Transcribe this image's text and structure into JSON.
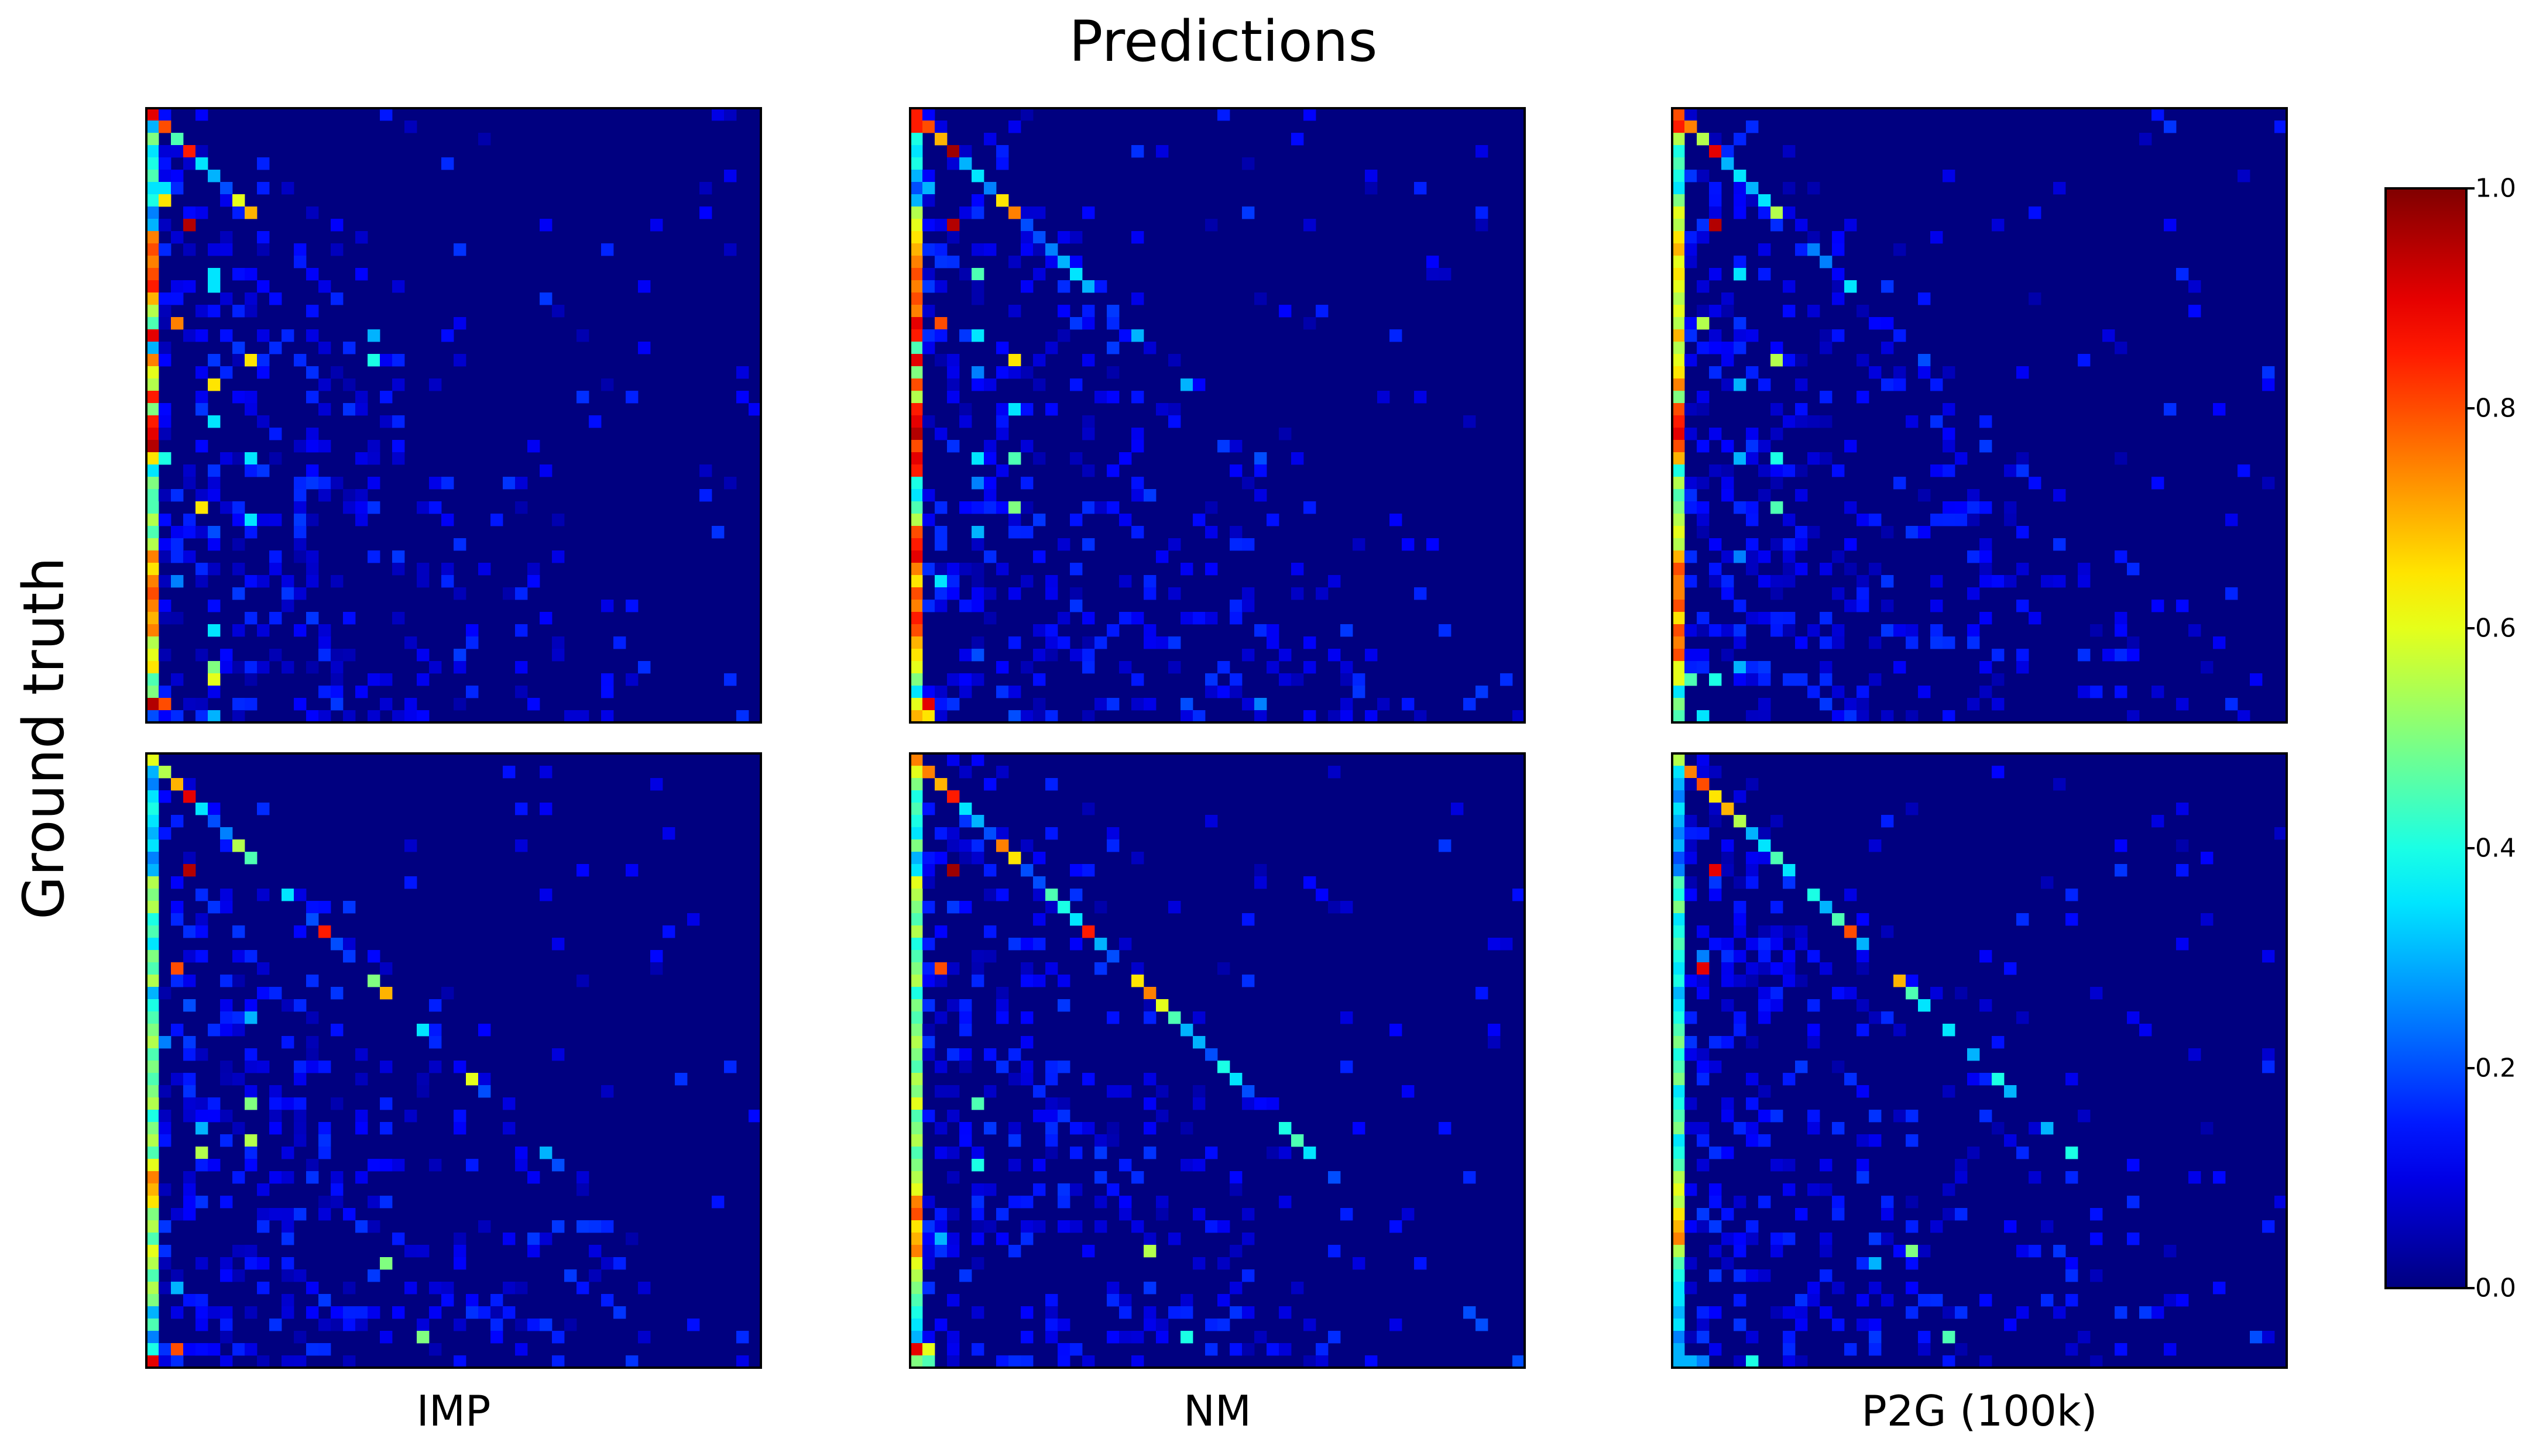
{
  "title": "Predictions",
  "ylabel": "Ground truth",
  "colormap": "jet",
  "colorbar": {
    "min": 0.0,
    "max": 1.0,
    "ticks": [
      "0.0",
      "0.2",
      "0.4",
      "0.6",
      "0.8",
      "1.0"
    ]
  },
  "chart_data": [
    {
      "type": "heatmap",
      "row": 1,
      "col": 1,
      "xlabel": "",
      "size": [
        50,
        50
      ],
      "diagonal": [
        [
          0,
          0,
          0.9
        ],
        [
          1,
          1,
          0.8
        ],
        [
          2,
          2,
          0.45
        ],
        [
          3,
          3,
          0.85
        ],
        [
          4,
          4,
          0.35
        ],
        [
          5,
          5,
          0.3
        ],
        [
          6,
          6,
          0.2
        ],
        [
          7,
          7,
          0.6
        ],
        [
          8,
          8,
          0.7
        ],
        [
          12,
          12,
          0.15
        ],
        [
          13,
          13,
          0.12
        ],
        [
          14,
          14,
          0.1
        ],
        [
          18,
          18,
          0.3
        ]
      ],
      "first_column": [
        0.9,
        0.3,
        0.5,
        0.35,
        0.4,
        0.45,
        0.35,
        0.4,
        0.25,
        0.3,
        0.75,
        0.8,
        0.75,
        0.8,
        0.85,
        0.7,
        0.55,
        0.45,
        0.9,
        0.3,
        0.75,
        0.6,
        0.55,
        0.85,
        0.5,
        0.85,
        0.9,
        0.95,
        0.65,
        0.35,
        0.5,
        0.45,
        0.45,
        0.55,
        0.45,
        0.55,
        0.75,
        0.65,
        0.75,
        0.8,
        0.75,
        0.7,
        0.75,
        0.55,
        0.6,
        0.65,
        0.45,
        0.5,
        0.95,
        0.2
      ],
      "hotspots": [
        [
          6,
          1,
          0.35
        ],
        [
          7,
          1,
          0.65
        ],
        [
          9,
          3,
          0.95
        ],
        [
          13,
          5,
          0.35
        ],
        [
          14,
          5,
          0.35
        ],
        [
          17,
          2,
          0.75
        ],
        [
          20,
          18,
          0.4
        ],
        [
          20,
          8,
          0.65
        ],
        [
          22,
          5,
          0.65
        ],
        [
          25,
          5,
          0.35
        ],
        [
          28,
          8,
          0.35
        ],
        [
          28,
          1,
          0.4
        ],
        [
          32,
          4,
          0.65
        ],
        [
          33,
          8,
          0.35
        ],
        [
          34,
          5,
          0.2
        ],
        [
          38,
          2,
          0.25
        ],
        [
          42,
          5,
          0.35
        ],
        [
          45,
          5,
          0.5
        ],
        [
          46,
          5,
          0.6
        ],
        [
          48,
          1,
          0.8
        ],
        [
          49,
          5,
          0.3
        ]
      ]
    },
    {
      "type": "heatmap",
      "row": 1,
      "col": 2,
      "xlabel": "",
      "size": [
        50,
        50
      ],
      "diagonal": [
        [
          0,
          0,
          0.85
        ],
        [
          1,
          1,
          0.8
        ],
        [
          2,
          2,
          0.7
        ],
        [
          3,
          3,
          0.97
        ],
        [
          4,
          4,
          0.3
        ],
        [
          5,
          5,
          0.35
        ],
        [
          6,
          6,
          0.25
        ],
        [
          7,
          7,
          0.65
        ],
        [
          8,
          8,
          0.75
        ],
        [
          9,
          9,
          0.2
        ],
        [
          10,
          10,
          0.2
        ],
        [
          11,
          11,
          0.25
        ],
        [
          12,
          12,
          0.3
        ],
        [
          13,
          13,
          0.35
        ],
        [
          14,
          14,
          0.3
        ],
        [
          18,
          18,
          0.3
        ],
        [
          22,
          22,
          0.3
        ],
        [
          28,
          28,
          0.2
        ],
        [
          32,
          32,
          0.15
        ]
      ],
      "first_column": [
        0.75,
        0.85,
        0.4,
        0.35,
        0.4,
        0.3,
        0.2,
        0.3,
        0.55,
        0.6,
        0.65,
        0.7,
        0.75,
        0.8,
        0.75,
        0.8,
        0.75,
        0.9,
        0.85,
        0.45,
        0.9,
        0.5,
        0.8,
        0.55,
        0.85,
        0.9,
        0.95,
        0.8,
        0.9,
        0.85,
        0.4,
        0.35,
        0.45,
        0.55,
        0.8,
        0.85,
        0.9,
        0.75,
        0.65,
        0.8,
        0.75,
        0.85,
        0.8,
        0.7,
        0.65,
        0.6,
        0.5,
        0.35,
        0.6,
        0.7
      ],
      "hotspots": [
        [
          6,
          1,
          0.3
        ],
        [
          9,
          3,
          0.95
        ],
        [
          13,
          5,
          0.45
        ],
        [
          17,
          2,
          0.8
        ],
        [
          18,
          5,
          0.35
        ],
        [
          20,
          8,
          0.65
        ],
        [
          21,
          5,
          0.25
        ],
        [
          24,
          8,
          0.35
        ],
        [
          28,
          8,
          0.45
        ],
        [
          28,
          5,
          0.35
        ],
        [
          30,
          5,
          0.25
        ],
        [
          32,
          8,
          0.5
        ],
        [
          34,
          5,
          0.3
        ],
        [
          38,
          2,
          0.35
        ],
        [
          44,
          5,
          0.2
        ],
        [
          48,
          1,
          0.9
        ],
        [
          49,
          1,
          0.65
        ],
        [
          49,
          8,
          0.2
        ],
        [
          48,
          28,
          0.25
        ],
        [
          48,
          22,
          0.2
        ]
      ]
    },
    {
      "type": "heatmap",
      "row": 1,
      "col": 3,
      "xlabel": "",
      "size": [
        50,
        50
      ],
      "diagonal": [
        [
          0,
          0,
          0.8
        ],
        [
          1,
          1,
          0.75
        ],
        [
          2,
          2,
          0.55
        ],
        [
          3,
          3,
          0.9
        ],
        [
          4,
          4,
          0.3
        ],
        [
          5,
          5,
          0.35
        ],
        [
          6,
          6,
          0.3
        ],
        [
          7,
          7,
          0.35
        ],
        [
          8,
          8,
          0.55
        ],
        [
          11,
          11,
          0.25
        ],
        [
          12,
          12,
          0.25
        ],
        [
          14,
          14,
          0.35
        ],
        [
          18,
          18,
          0.15
        ],
        [
          20,
          20,
          0.2
        ]
      ],
      "first_column": [
        0.6,
        0.85,
        0.55,
        0.4,
        0.45,
        0.4,
        0.35,
        0.5,
        0.6,
        0.55,
        0.65,
        0.7,
        0.6,
        0.65,
        0.6,
        0.55,
        0.6,
        0.55,
        0.7,
        0.55,
        0.6,
        0.65,
        0.75,
        0.5,
        0.8,
        0.85,
        0.9,
        0.8,
        0.7,
        0.4,
        0.55,
        0.45,
        0.5,
        0.55,
        0.6,
        0.55,
        0.7,
        0.8,
        0.75,
        0.75,
        0.8,
        0.65,
        0.8,
        0.75,
        0.8,
        0.6,
        0.6,
        0.35,
        0.5,
        0.45
      ],
      "hotspots": [
        [
          9,
          3,
          0.95
        ],
        [
          13,
          5,
          0.35
        ],
        [
          17,
          2,
          0.55
        ],
        [
          20,
          8,
          0.55
        ],
        [
          22,
          5,
          0.3
        ],
        [
          28,
          8,
          0.4
        ],
        [
          28,
          5,
          0.3
        ],
        [
          32,
          8,
          0.45
        ],
        [
          36,
          5,
          0.25
        ],
        [
          45,
          5,
          0.3
        ],
        [
          46,
          1,
          0.45
        ],
        [
          46,
          3,
          0.4
        ],
        [
          49,
          2,
          0.35
        ]
      ]
    },
    {
      "type": "heatmap",
      "row": 2,
      "col": 1,
      "xlabel": "IMP",
      "size": [
        50,
        50
      ],
      "diagonal": [
        [
          0,
          0,
          0.6
        ],
        [
          1,
          1,
          0.55
        ],
        [
          2,
          2,
          0.7
        ],
        [
          3,
          3,
          0.9
        ],
        [
          4,
          4,
          0.35
        ],
        [
          5,
          5,
          0.2
        ],
        [
          6,
          6,
          0.25
        ],
        [
          7,
          7,
          0.55
        ],
        [
          8,
          8,
          0.45
        ],
        [
          11,
          11,
          0.35
        ],
        [
          13,
          13,
          0.2
        ],
        [
          14,
          14,
          0.85
        ],
        [
          15,
          15,
          0.2
        ],
        [
          18,
          18,
          0.5
        ],
        [
          19,
          19,
          0.7
        ],
        [
          22,
          22,
          0.35
        ],
        [
          26,
          26,
          0.6
        ],
        [
          27,
          27,
          0.2
        ],
        [
          32,
          32,
          0.3
        ],
        [
          33,
          33,
          0.2
        ]
      ],
      "first_column": [
        0.6,
        0.3,
        0.25,
        0.35,
        0.4,
        0.35,
        0.3,
        0.35,
        0.25,
        0.3,
        0.55,
        0.5,
        0.55,
        0.4,
        0.45,
        0.35,
        0.5,
        0.45,
        0.55,
        0.3,
        0.4,
        0.45,
        0.5,
        0.55,
        0.45,
        0.5,
        0.45,
        0.5,
        0.55,
        0.4,
        0.5,
        0.55,
        0.45,
        0.6,
        0.75,
        0.7,
        0.65,
        0.5,
        0.55,
        0.45,
        0.6,
        0.55,
        0.45,
        0.55,
        0.5,
        0.3,
        0.45,
        0.25,
        0.4,
        0.9
      ],
      "hotspots": [
        [
          9,
          3,
          0.95
        ],
        [
          17,
          2,
          0.8
        ],
        [
          20,
          3,
          0.2
        ],
        [
          21,
          8,
          0.3
        ],
        [
          23,
          1,
          0.25
        ],
        [
          28,
          8,
          0.5
        ],
        [
          30,
          4,
          0.3
        ],
        [
          31,
          8,
          0.55
        ],
        [
          32,
          4,
          0.55
        ],
        [
          41,
          19,
          0.5
        ],
        [
          47,
          22,
          0.5
        ],
        [
          48,
          2,
          0.8
        ],
        [
          43,
          2,
          0.3
        ]
      ]
    },
    {
      "type": "heatmap",
      "row": 2,
      "col": 2,
      "xlabel": "NM",
      "size": [
        50,
        50
      ],
      "diagonal": [
        [
          0,
          0,
          0.75
        ],
        [
          1,
          1,
          0.75
        ],
        [
          2,
          2,
          0.7
        ],
        [
          3,
          3,
          0.85
        ],
        [
          4,
          4,
          0.35
        ],
        [
          5,
          5,
          0.3
        ],
        [
          6,
          6,
          0.2
        ],
        [
          7,
          7,
          0.75
        ],
        [
          8,
          8,
          0.65
        ],
        [
          9,
          9,
          0.2
        ],
        [
          10,
          10,
          0.2
        ],
        [
          11,
          11,
          0.45
        ],
        [
          12,
          12,
          0.4
        ],
        [
          13,
          13,
          0.35
        ],
        [
          14,
          14,
          0.85
        ],
        [
          15,
          15,
          0.3
        ],
        [
          16,
          16,
          0.2
        ],
        [
          18,
          18,
          0.65
        ],
        [
          19,
          19,
          0.75
        ],
        [
          20,
          20,
          0.6
        ],
        [
          21,
          21,
          0.45
        ],
        [
          22,
          22,
          0.3
        ],
        [
          23,
          23,
          0.3
        ],
        [
          24,
          24,
          0.2
        ],
        [
          25,
          25,
          0.4
        ],
        [
          26,
          26,
          0.35
        ],
        [
          27,
          27,
          0.2
        ],
        [
          30,
          30,
          0.4
        ],
        [
          31,
          31,
          0.45
        ],
        [
          32,
          32,
          0.35
        ],
        [
          34,
          34,
          0.2
        ],
        [
          45,
          45,
          0.2
        ],
        [
          46,
          46,
          0.2
        ],
        [
          49,
          49,
          0.2
        ]
      ],
      "first_column": [
        0.7,
        0.6,
        0.5,
        0.4,
        0.45,
        0.4,
        0.35,
        0.5,
        0.3,
        0.35,
        0.6,
        0.55,
        0.5,
        0.45,
        0.55,
        0.4,
        0.45,
        0.5,
        0.55,
        0.4,
        0.5,
        0.45,
        0.5,
        0.55,
        0.5,
        0.45,
        0.55,
        0.5,
        0.6,
        0.45,
        0.5,
        0.55,
        0.45,
        0.5,
        0.55,
        0.6,
        0.75,
        0.8,
        0.65,
        0.7,
        0.75,
        0.6,
        0.55,
        0.5,
        0.45,
        0.4,
        0.35,
        0.3,
        0.9,
        0.5
      ],
      "hotspots": [
        [
          9,
          3,
          0.97
        ],
        [
          17,
          2,
          0.8
        ],
        [
          28,
          5,
          0.45
        ],
        [
          33,
          5,
          0.4
        ],
        [
          39,
          2,
          0.3
        ],
        [
          40,
          19,
          0.55
        ],
        [
          48,
          1,
          0.6
        ],
        [
          49,
          1,
          0.45
        ],
        [
          47,
          22,
          0.4
        ]
      ]
    },
    {
      "type": "heatmap",
      "row": 2,
      "col": 3,
      "xlabel": "P2G (100k)",
      "size": [
        50,
        50
      ],
      "diagonal": [
        [
          0,
          0,
          0.55
        ],
        [
          1,
          1,
          0.75
        ],
        [
          2,
          2,
          0.8
        ],
        [
          3,
          3,
          0.65
        ],
        [
          4,
          4,
          0.7
        ],
        [
          5,
          5,
          0.55
        ],
        [
          6,
          6,
          0.3
        ],
        [
          7,
          7,
          0.35
        ],
        [
          8,
          8,
          0.45
        ],
        [
          9,
          9,
          0.35
        ],
        [
          11,
          11,
          0.4
        ],
        [
          12,
          12,
          0.3
        ],
        [
          13,
          13,
          0.45
        ],
        [
          14,
          14,
          0.8
        ],
        [
          15,
          15,
          0.3
        ],
        [
          18,
          18,
          0.7
        ],
        [
          19,
          19,
          0.45
        ],
        [
          20,
          20,
          0.35
        ],
        [
          22,
          22,
          0.35
        ],
        [
          24,
          24,
          0.3
        ],
        [
          26,
          26,
          0.4
        ],
        [
          27,
          27,
          0.3
        ],
        [
          30,
          30,
          0.3
        ],
        [
          32,
          32,
          0.4
        ]
      ],
      "first_column": [
        0.5,
        0.35,
        0.3,
        0.25,
        0.35,
        0.3,
        0.25,
        0.3,
        0.2,
        0.25,
        0.45,
        0.4,
        0.5,
        0.35,
        0.4,
        0.45,
        0.4,
        0.35,
        0.4,
        0.3,
        0.35,
        0.4,
        0.45,
        0.5,
        0.4,
        0.45,
        0.5,
        0.35,
        0.4,
        0.45,
        0.5,
        0.35,
        0.4,
        0.45,
        0.55,
        0.6,
        0.55,
        0.65,
        0.7,
        0.75,
        0.55,
        0.45,
        0.4,
        0.35,
        0.35,
        0.3,
        0.35,
        0.25,
        0.3,
        0.3
      ],
      "hotspots": [
        [
          9,
          3,
          0.9
        ],
        [
          17,
          2,
          0.9
        ],
        [
          16,
          2,
          0.25
        ],
        [
          40,
          19,
          0.5
        ],
        [
          41,
          16,
          0.3
        ],
        [
          47,
          22,
          0.45
        ],
        [
          49,
          1,
          0.3
        ],
        [
          49,
          2,
          0.25
        ],
        [
          49,
          6,
          0.4
        ],
        [
          47,
          47,
          0.2
        ]
      ]
    }
  ]
}
